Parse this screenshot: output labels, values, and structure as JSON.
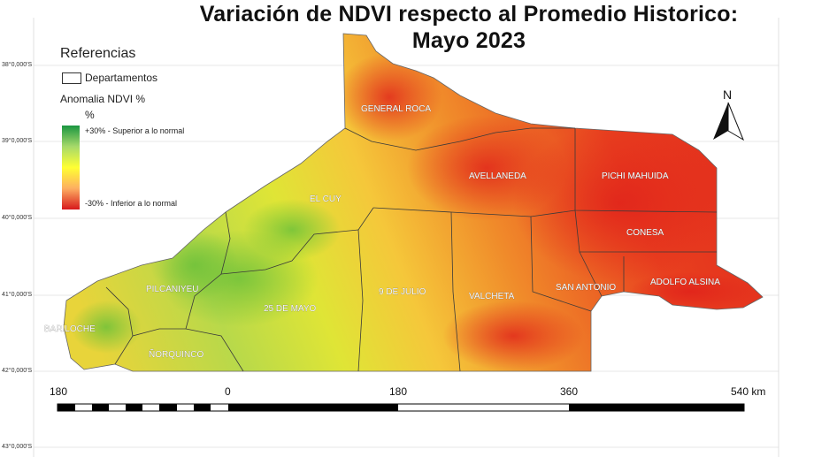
{
  "title": {
    "line1": "Variación de NDVI respecto al Promedio Historico:",
    "line2": "Mayo 2023"
  },
  "latitude_labels": [
    "38°0,000'S",
    "39°0,000'S",
    "40°0,000'S",
    "41°0,000'S",
    "42°0,000'S",
    "43°0,000'S"
  ],
  "legend": {
    "title": "Referencias",
    "departments_label": "Departamentos",
    "anomaly_label": "Anomalia NDVI %",
    "unit_label": "%",
    "high_label": "+30% - Superior a lo normal",
    "low_label": "-30% - Inferior a lo normal",
    "ramp_colors": [
      "#1a9641",
      "#a6d96a",
      "#ffff33",
      "#fdae61",
      "#d7191c"
    ]
  },
  "departments": [
    "GENERAL ROCA",
    "AVELLANEDA",
    "PICHI MAHUIDA",
    "EL CUY",
    "CONESA",
    "PILCANIYEU",
    "9 DE JULIO",
    "VALCHETA",
    "SAN ANTONIO",
    "ADOLFO ALSINA",
    "BARILOCHE",
    "25 DE MAYO",
    "ÑORQUINCO"
  ],
  "scale_bar": {
    "labels": [
      "180",
      "0",
      "180",
      "360",
      "540 km"
    ]
  },
  "north_arrow": {
    "label": "N",
    "icon": "north-arrow-icon"
  }
}
